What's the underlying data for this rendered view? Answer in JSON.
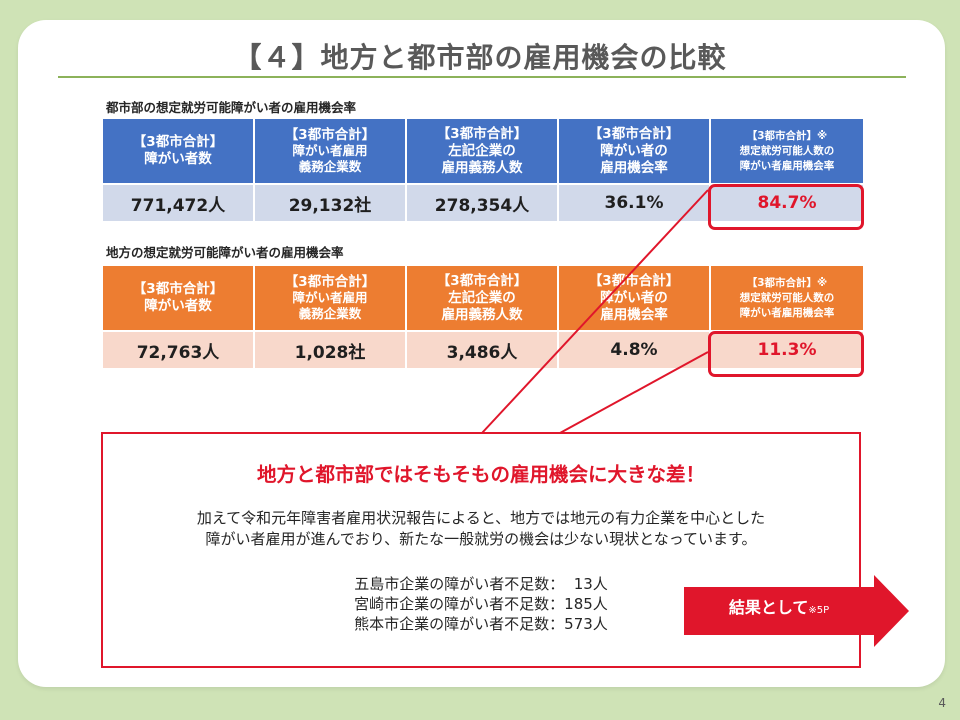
{
  "title": "【４】地方と都市部の雇用機会の比較",
  "urban": {
    "label": "都市部の想定就労可能障がい者の雇用機会率",
    "headers": [
      [
        "【3都市合計】",
        "障がい者数"
      ],
      [
        "【3都市合計】",
        "障がい者雇用",
        "義務企業数"
      ],
      [
        "【3都市合計】",
        "左記企業の",
        "雇用義務人数"
      ],
      [
        "【3都市合計】",
        "障がい者の",
        "雇用機会率"
      ],
      [
        "【3都市合計】※",
        "想定就労可能人数の",
        "障がい者雇用機会率"
      ]
    ],
    "values": [
      "771,472人",
      "29,132社",
      "278,354人",
      "36.1%",
      "84.7%"
    ]
  },
  "rural": {
    "label": "地方の想定就労可能障がい者の雇用機会率",
    "headers": [
      [
        "【3都市合計】",
        "障がい者数"
      ],
      [
        "【3都市合計】",
        "障がい者雇用",
        "義務企業数"
      ],
      [
        "【3都市合計】",
        "左記企業の",
        "雇用義務人数"
      ],
      [
        "【3都市合計】",
        "障がい者の",
        "雇用機会率"
      ],
      [
        "【3都市合計】※",
        "想定就労可能人数の",
        "障がい者雇用機会率"
      ]
    ],
    "values": [
      "72,763人",
      "1,028社",
      "3,486人",
      "4.8%",
      "11.3%"
    ]
  },
  "callout": {
    "title": "地方と都市部ではそもそもの雇用機会に大きな差！",
    "body_line1": "加えて令和元年障害者雇用状況報告によると、地方では地元の有力企業を中心とした",
    "body_line2": "障がい者雇用が進んでおり、新たな一般就労の機会は少ない現状となっています。",
    "stats": [
      "五島市企業の障がい者不足数：  13人",
      "宮崎市企業の障がい者不足数：185人",
      "熊本市企業の障がい者不足数：573人"
    ]
  },
  "arrow": {
    "label": "結果として",
    "note": "※5P"
  },
  "page_number": "4",
  "colors": {
    "blue_header": "#4472c4",
    "blue_row": "#d1d9ea",
    "orange_header": "#ed7d31",
    "orange_row": "#f8d8cb",
    "accent_red": "#e0162b",
    "background": "#cfe3b6"
  }
}
